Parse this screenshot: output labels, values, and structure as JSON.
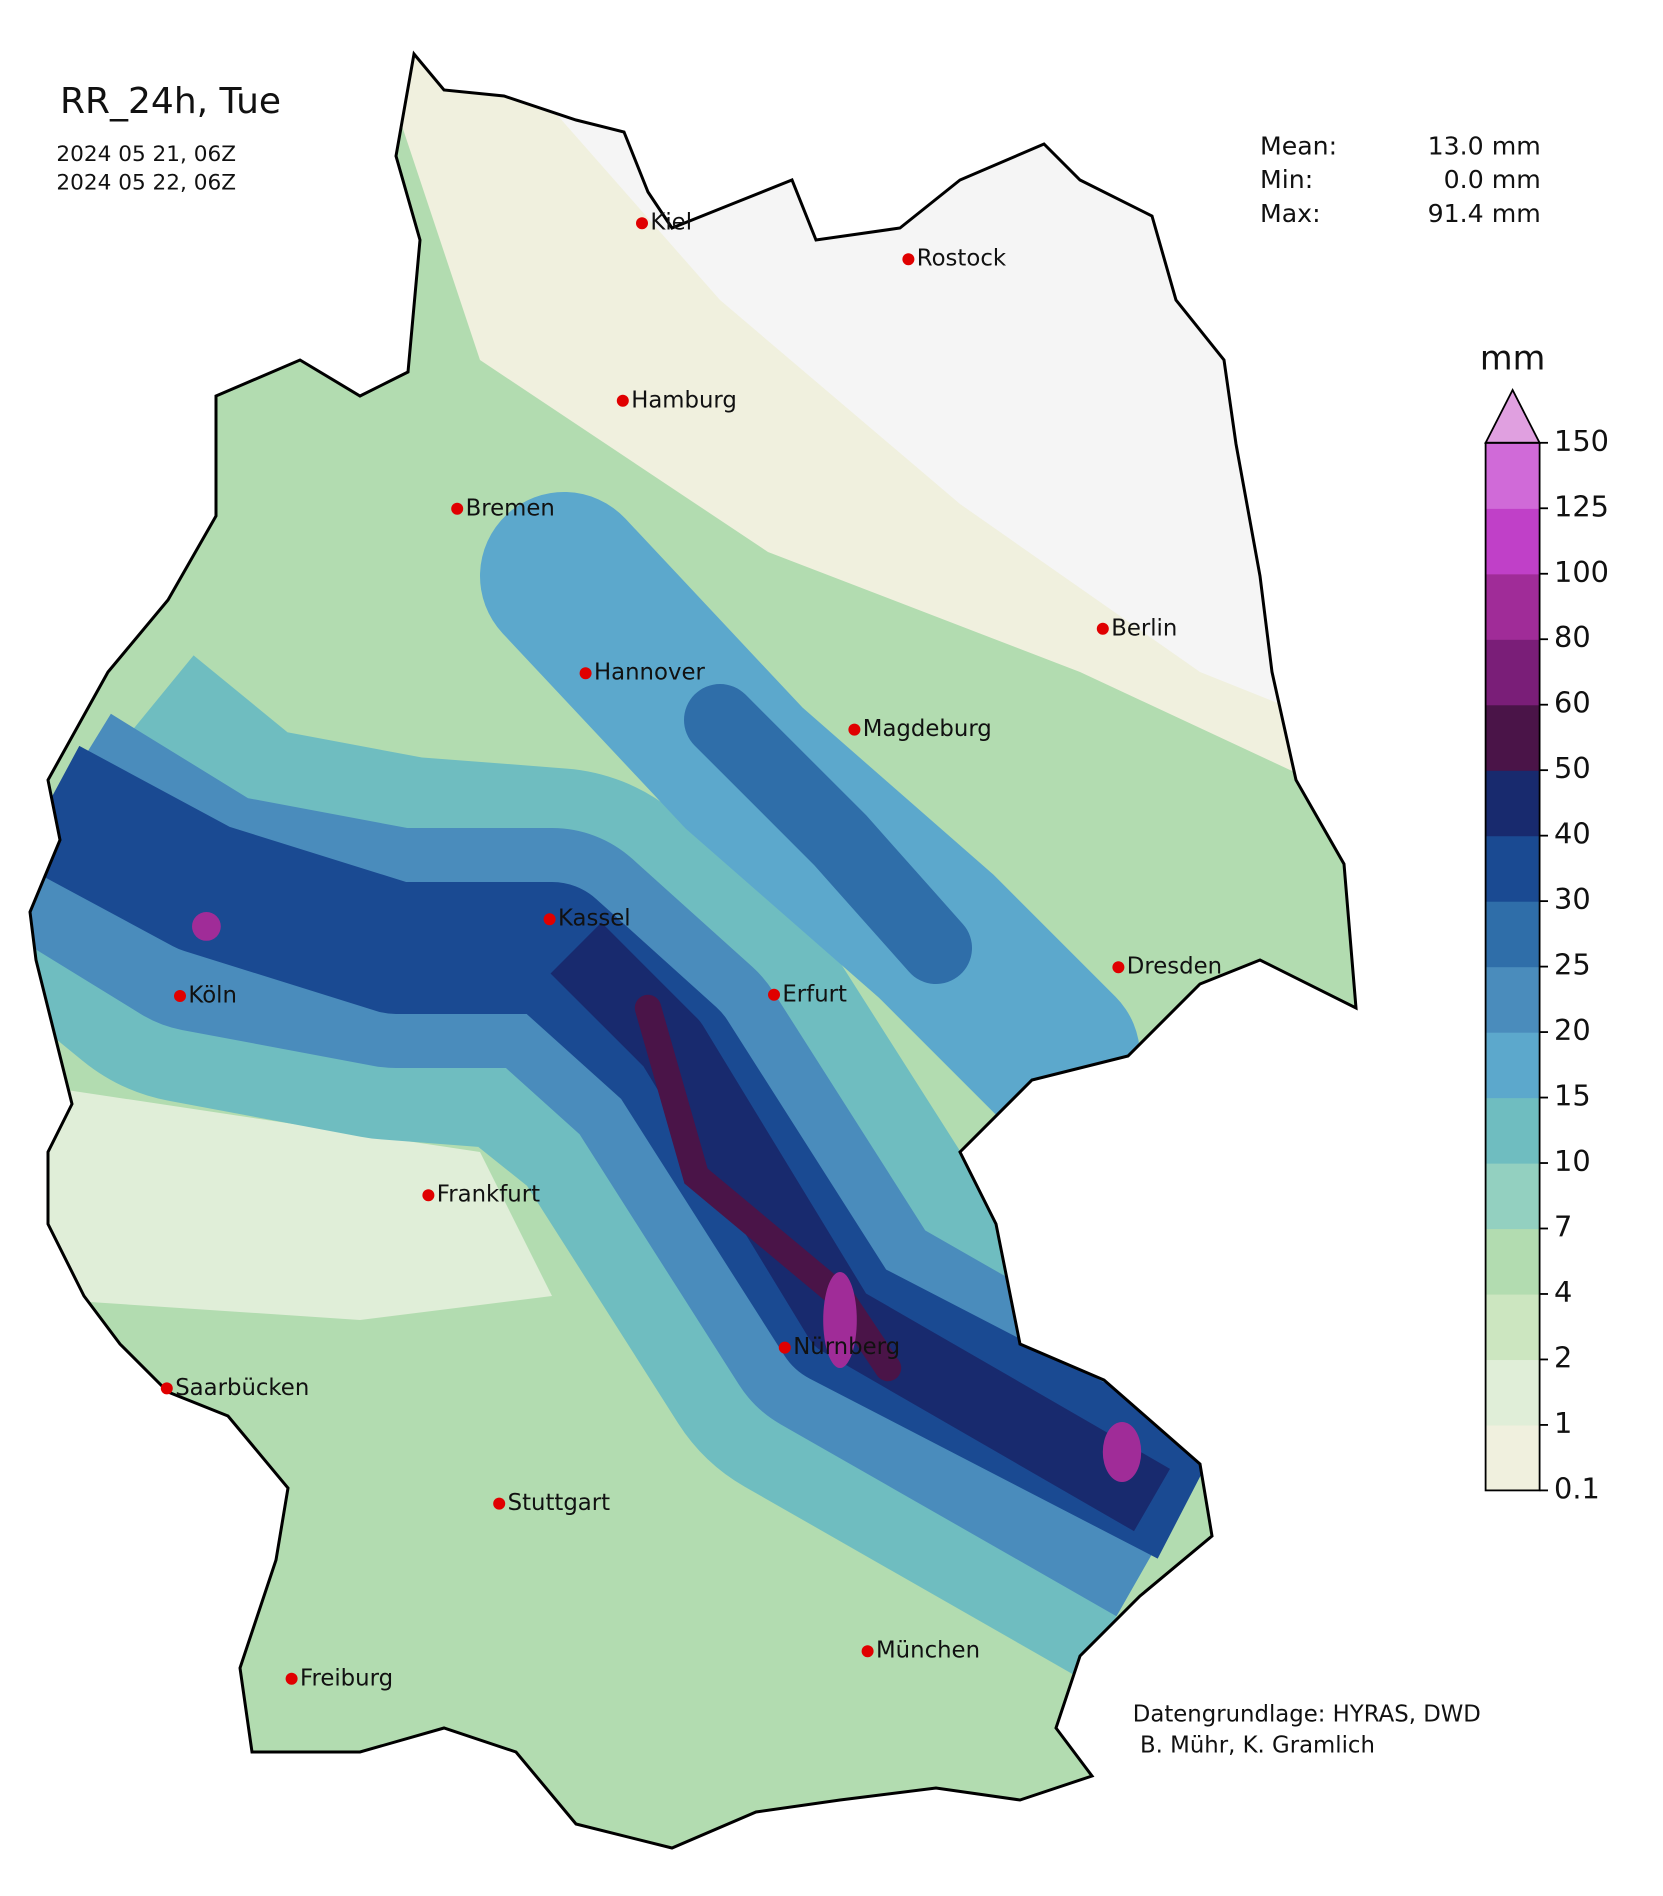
{
  "title": "RR_24h, Tue",
  "period": [
    "2024 05 21, 06Z",
    "2024 05 22, 06Z"
  ],
  "stats": [
    {
      "label": "Mean:",
      "value": "13.0 mm"
    },
    {
      "label": "Min:",
      "value": "0.0 mm"
    },
    {
      "label": "Max:",
      "value": "91.4 mm"
    }
  ],
  "cities": [
    "Kiel",
    "Rostock",
    "Hamburg",
    "Bremen",
    "Berlin",
    "Hannover",
    "Magdeburg",
    "Kassel",
    "Dresden",
    "Köln",
    "Erfurt",
    "Frankfurt",
    "Nürnberg",
    "Saarbücken",
    "Stuttgart",
    "München",
    "Freiburg"
  ],
  "colorbar": {
    "unit": "mm",
    "levels": [
      0.1,
      1,
      2,
      4,
      7,
      10,
      15,
      20,
      25,
      30,
      40,
      50,
      60,
      80,
      100,
      125,
      150
    ],
    "colors": [
      "#f0f0de",
      "#e0eed8",
      "#cce6c0",
      "#b2dcb0",
      "#93d0c0",
      "#6fbdc0",
      "#5ca8cc",
      "#4a8cbc",
      "#2f6ea9",
      "#1a4a92",
      "#182a6e",
      "#4a1448",
      "#7a1e78",
      "#a02c98",
      "#c040c8",
      "#d06ad8"
    ],
    "extend_color": "#e0a0e0"
  },
  "credits": [
    "Datengrundlage: HYRAS, DWD",
    " B. Mühr, K. Gramlich"
  ]
}
